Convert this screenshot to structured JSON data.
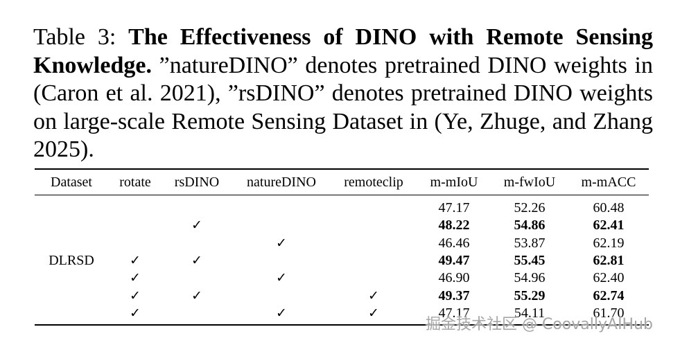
{
  "caption": {
    "label": "Table 3: ",
    "title": "The Effectiveness of DINO with Remote Sensing Knowledge.",
    "body": " ”natureDINO” denotes pretrained DINO weights in (Caron et al. 2021), ”rsDINO” denotes pretrained DINO weights on large-scale Remote Sensing Dataset in (Ye, Zhuge, and Zhang 2025)."
  },
  "table": {
    "columns": [
      "Dataset",
      "rotate",
      "rsDINO",
      "natureDINO",
      "remoteclip",
      "m-mIoU",
      "m-fwIoU",
      "m-mACC"
    ],
    "dataset": "DLRSD",
    "check_symbol": "✓",
    "rows": [
      {
        "rotate": false,
        "rsDINO": false,
        "natureDINO": false,
        "remoteclip": false,
        "values": [
          "47.17",
          "52.26",
          "60.48"
        ],
        "bold": false
      },
      {
        "rotate": false,
        "rsDINO": true,
        "natureDINO": false,
        "remoteclip": false,
        "values": [
          "48.22",
          "54.86",
          "62.41"
        ],
        "bold": true
      },
      {
        "rotate": false,
        "rsDINO": false,
        "natureDINO": true,
        "remoteclip": false,
        "values": [
          "46.46",
          "53.87",
          "62.19"
        ],
        "bold": false
      },
      {
        "rotate": true,
        "rsDINO": true,
        "natureDINO": false,
        "remoteclip": false,
        "values": [
          "49.47",
          "55.45",
          "62.81"
        ],
        "bold": true
      },
      {
        "rotate": true,
        "rsDINO": false,
        "natureDINO": true,
        "remoteclip": false,
        "values": [
          "46.90",
          "54.96",
          "62.40"
        ],
        "bold": false
      },
      {
        "rotate": true,
        "rsDINO": true,
        "natureDINO": false,
        "remoteclip": true,
        "values": [
          "49.37",
          "55.29",
          "62.74"
        ],
        "bold": true
      },
      {
        "rotate": true,
        "rsDINO": false,
        "natureDINO": true,
        "remoteclip": true,
        "values": [
          "47.17",
          "54.11",
          "61.70"
        ],
        "bold": false
      }
    ]
  },
  "watermark": "掘金技术社区 @ CoovallyAIHub"
}
